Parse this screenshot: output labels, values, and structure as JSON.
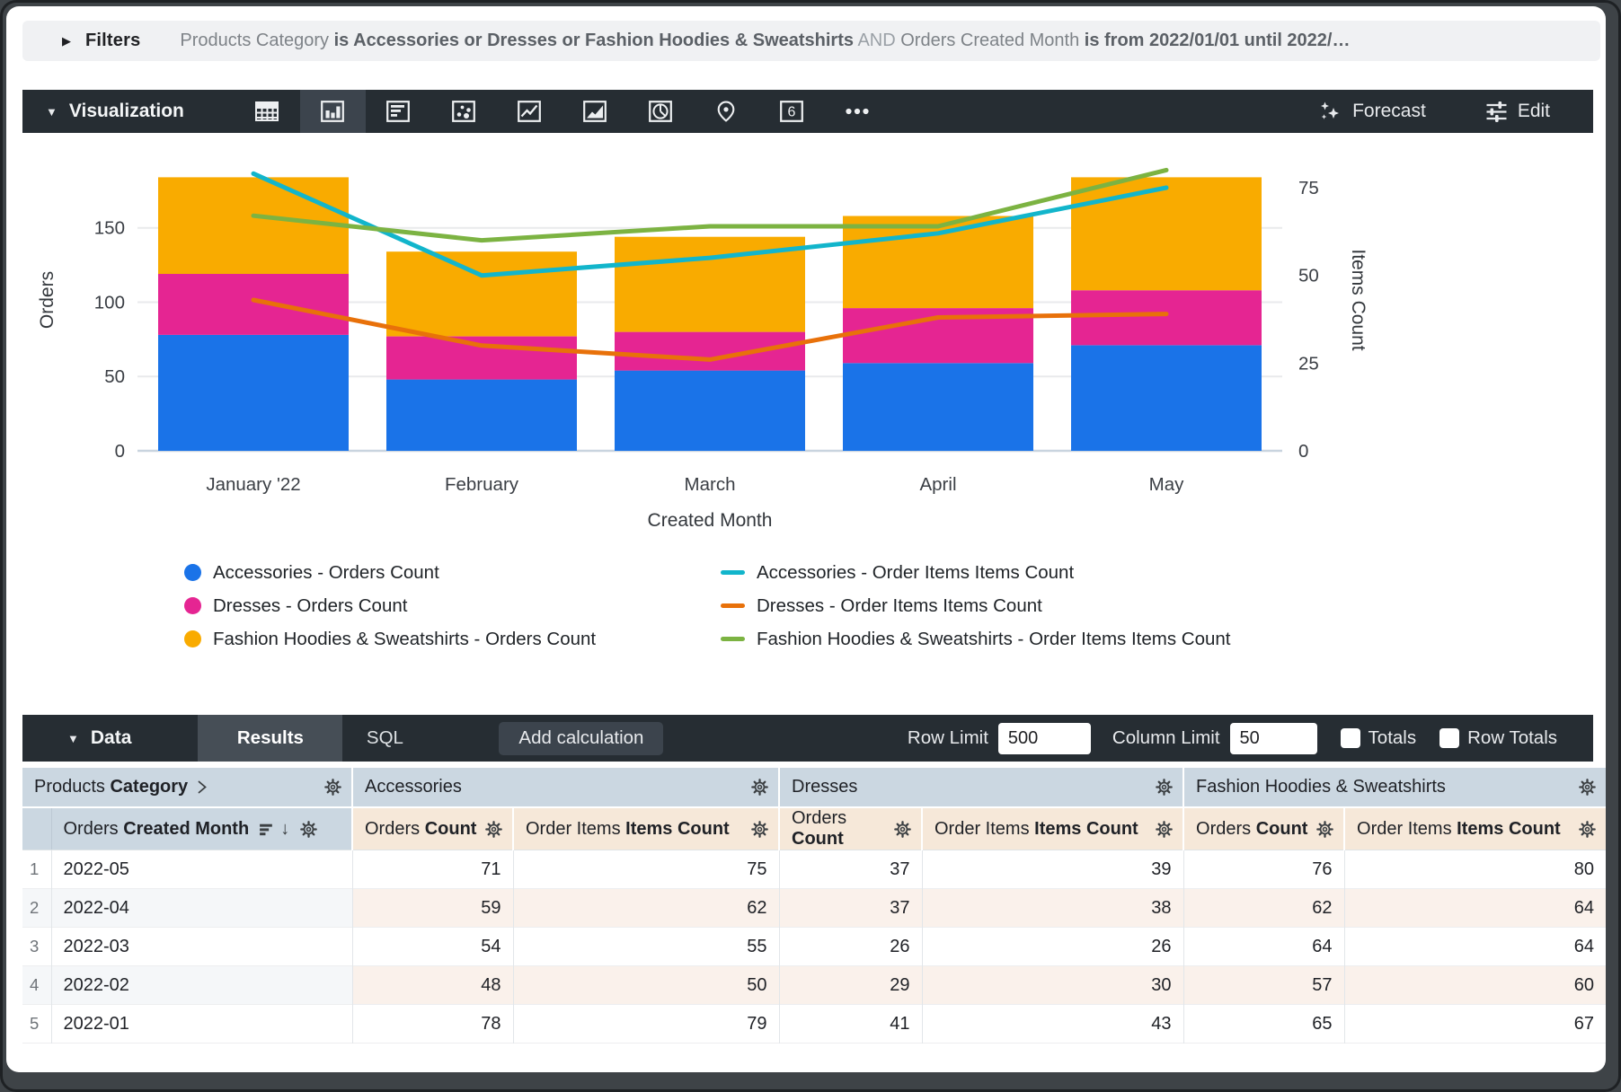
{
  "filters": {
    "label": "Filters",
    "segments": [
      {
        "style": "plain",
        "text": "Products Category "
      },
      {
        "style": "strong",
        "text": "is Accessories or Dresses or Fashion Hoodies & Sweatshirts"
      },
      {
        "style": "conj",
        "text": " AND "
      },
      {
        "style": "plain",
        "text": "Orders Created Month "
      },
      {
        "style": "strong",
        "text": "is from 2022/01/01 until 2022/…"
      }
    ]
  },
  "viz_toolbar": {
    "title": "Visualization",
    "icons": [
      {
        "name": "table-chart",
        "selected": false
      },
      {
        "name": "column-chart",
        "selected": true
      },
      {
        "name": "bar-chart",
        "selected": false
      },
      {
        "name": "scatter-chart",
        "selected": false
      },
      {
        "name": "line-chart",
        "selected": false
      },
      {
        "name": "area-chart",
        "selected": false
      },
      {
        "name": "pie-chart",
        "selected": false
      },
      {
        "name": "map-chart",
        "selected": false
      },
      {
        "name": "single-value",
        "selected": false,
        "glyph": "6"
      },
      {
        "name": "more-viz-types",
        "selected": false
      }
    ],
    "forecast_label": "Forecast",
    "edit_label": "Edit"
  },
  "chart_data": {
    "type": "combo",
    "categories": [
      "January '22",
      "February",
      "March",
      "April",
      "May"
    ],
    "x_axis_title": "Created Month",
    "left_axis": {
      "title": "Orders",
      "ticks": [
        0,
        50,
        100,
        150
      ],
      "max": 203
    },
    "right_axis": {
      "title": "Items Count",
      "ticks": [
        0,
        25,
        50,
        75
      ],
      "max": 86
    },
    "bar_series": [
      {
        "name": "Accessories - Orders Count",
        "color": "#1A73E8",
        "values": [
          78,
          48,
          54,
          59,
          71
        ]
      },
      {
        "name": "Dresses - Orders Count",
        "color": "#E52592",
        "values": [
          41,
          29,
          26,
          37,
          37
        ]
      },
      {
        "name": "Fashion Hoodies & Sweatshirts - Orders Count",
        "color": "#F9AB00",
        "values": [
          65,
          57,
          64,
          62,
          76
        ]
      }
    ],
    "line_series": [
      {
        "name": "Accessories - Order Items Items Count",
        "color": "#12B5CB",
        "values": [
          79,
          50,
          55,
          62,
          75
        ]
      },
      {
        "name": "Dresses - Order Items Items Count",
        "color": "#E8710A",
        "values": [
          43,
          30,
          26,
          38,
          39
        ]
      },
      {
        "name": "Fashion Hoodies & Sweatshirts - Order Items Items Count",
        "color": "#7CB342",
        "values": [
          67,
          60,
          64,
          64,
          80
        ]
      }
    ],
    "legend_position": "bottom",
    "grid": true
  },
  "data_panel": {
    "title": "Data",
    "tabs": [
      {
        "label": "Results",
        "active": true
      },
      {
        "label": "SQL",
        "active": false
      }
    ],
    "add_calculation_label": "Add calculation",
    "row_limit_label": "Row Limit",
    "row_limit_value": "500",
    "column_limit_label": "Column Limit",
    "column_limit_value": "50",
    "totals_label": "Totals",
    "totals_checked": false,
    "row_totals_label": "Row Totals",
    "row_totals_checked": false
  },
  "table": {
    "dimension_group": {
      "plain": "Products",
      "bold": "Category"
    },
    "dimension_column": {
      "plain": "Orders",
      "bold": "Created Month",
      "sort": "desc"
    },
    "measure_groups": [
      {
        "label": "Accessories",
        "columns": [
          {
            "plain": "Orders",
            "bold": "Count"
          },
          {
            "plain": "Order Items",
            "bold": "Items Count"
          }
        ]
      },
      {
        "label": "Dresses",
        "columns": [
          {
            "plain": "Orders",
            "bold": "Count"
          },
          {
            "plain": "Order Items",
            "bold": "Items Count"
          }
        ]
      },
      {
        "label": "Fashion Hoodies & Sweatshirts",
        "columns": [
          {
            "plain": "Orders",
            "bold": "Count"
          },
          {
            "plain": "Order Items",
            "bold": "Items Count"
          }
        ]
      }
    ],
    "rows": [
      {
        "num": "1",
        "dimension": "2022-05",
        "values": [
          "71",
          "75",
          "37",
          "39",
          "76",
          "80"
        ]
      },
      {
        "num": "2",
        "dimension": "2022-04",
        "values": [
          "59",
          "62",
          "37",
          "38",
          "62",
          "64"
        ]
      },
      {
        "num": "3",
        "dimension": "2022-03",
        "values": [
          "54",
          "55",
          "26",
          "26",
          "64",
          "64"
        ]
      },
      {
        "num": "4",
        "dimension": "2022-02",
        "values": [
          "48",
          "50",
          "29",
          "30",
          "57",
          "60"
        ]
      },
      {
        "num": "5",
        "dimension": "2022-01",
        "values": [
          "78",
          "79",
          "41",
          "43",
          "65",
          "67"
        ]
      }
    ]
  },
  "palette": {
    "toolbar_bg": "#262D33",
    "dimension_header_bg": "#CBD7E1",
    "measure_header_bg": "#F6E8D9",
    "measure_stripe_bg": "#FAF1EB"
  }
}
